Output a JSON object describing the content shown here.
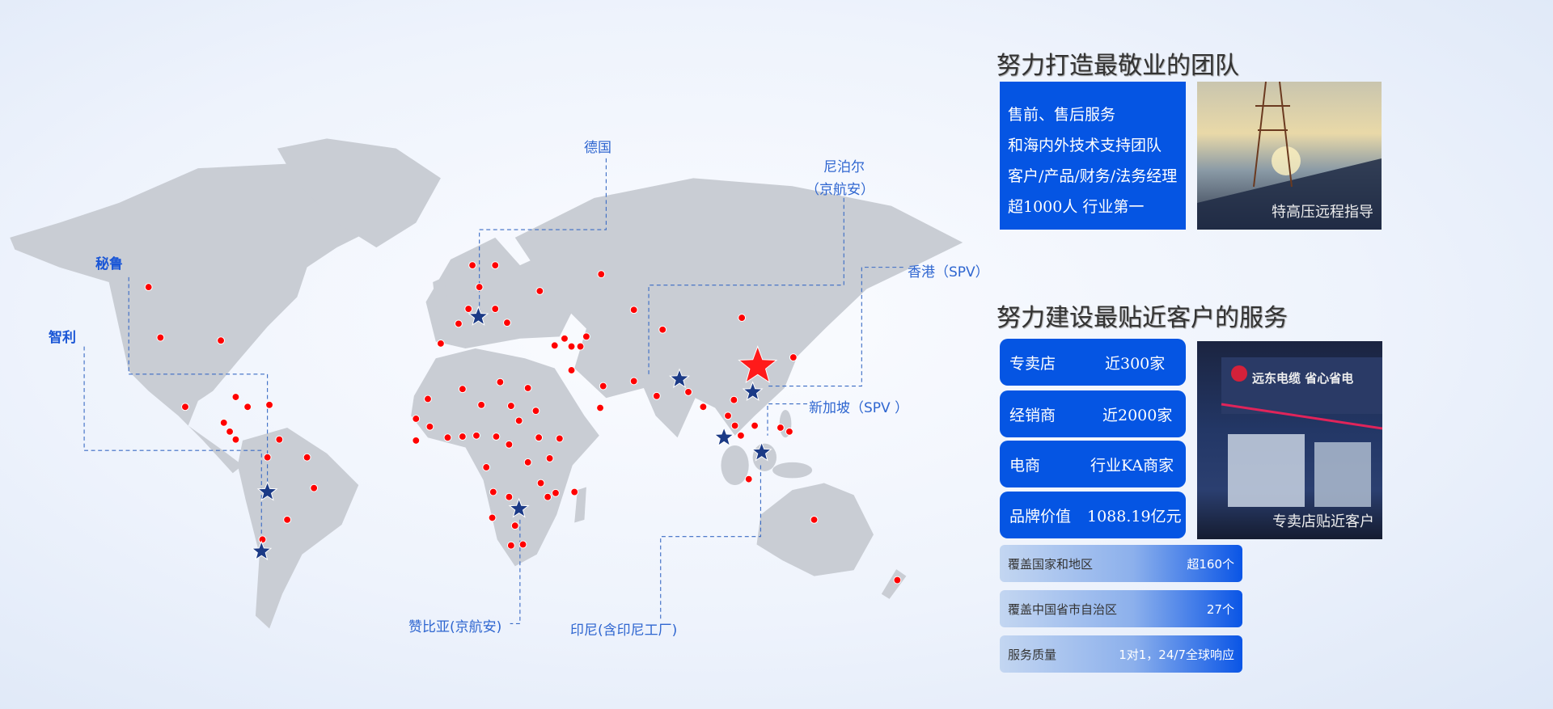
{
  "colors": {
    "accent": "#0555e3",
    "land": "#c9cdd4",
    "dot": "#ff0000",
    "star_blue": "#1b3a86",
    "star_red": "#ff1a1a",
    "leader": "#3a6bc4"
  },
  "map_labels": {
    "germany": "德国",
    "nepal_1": "尼泊尔",
    "nepal_2": "（京航安）",
    "hongkong": "香港（SPV）",
    "singapore": "新加坡（SPV ）",
    "peru": "秘鲁",
    "chile": "智利",
    "zambia": "赞比亚(京航安)",
    "indonesia": "印尼(含印尼工厂)"
  },
  "team": {
    "title": "努力打造最敬业的团队",
    "lines": [
      "售前、售后服务",
      "和海内外技术支持团队",
      "客户/产品/财务/法务经理",
      "超1000人  行业第一"
    ],
    "photo_caption": "特高压远程指导"
  },
  "service": {
    "title": "努力建设最贴近客户的服务",
    "stats": [
      {
        "label": "专卖店",
        "value": "近300家"
      },
      {
        "label": "经销商",
        "value": "近2000家"
      },
      {
        "label": "电商",
        "value": "行业KA商家"
      },
      {
        "label": "品牌价值",
        "value": "1088.19亿元"
      }
    ],
    "photo_caption": "专卖店贴近客户",
    "store_sign": "远东电缆 省心省电",
    "bars": [
      {
        "label": "覆盖国家和地区",
        "value": "超160个"
      },
      {
        "label": "覆盖中国省市自治区",
        "value": "27个"
      },
      {
        "label": "服务质量",
        "value": "1对1，24/7全球响应"
      }
    ]
  }
}
